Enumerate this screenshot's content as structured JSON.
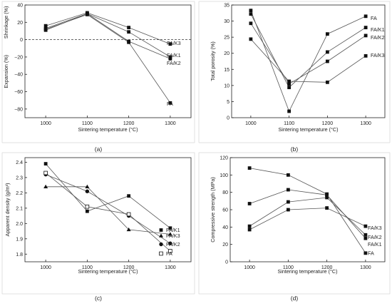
{
  "chart_data": [
    {
      "panel_label": "(a)",
      "type": "line",
      "x": [
        1000,
        1100,
        1200,
        1300
      ],
      "xlabel": "Sintering temperature (°C)",
      "ylabel_top": "Shrinkage (%)",
      "ylabel_bottom": "Expansion (%)",
      "xlim": [
        950,
        1350
      ],
      "ylim": [
        -90,
        40
      ],
      "xticks": [
        "1000",
        "1100",
        "1200",
        "1300"
      ],
      "yticks": [
        "40",
        "20",
        "0",
        "−20",
        "−40",
        "−60",
        "−80"
      ],
      "zero_line": "dashed",
      "series": [
        {
          "name": "FA/K3",
          "values": [
            16,
            31,
            14,
            -5
          ],
          "marker": "square"
        },
        {
          "name": "FA/K1",
          "values": [
            13,
            30,
            9,
            -20
          ],
          "marker": "square"
        },
        {
          "name": "FA/K2",
          "values": [
            11,
            30,
            -2,
            -22
          ],
          "marker": "square"
        },
        {
          "name": "FA",
          "values": [
            12,
            29,
            -3,
            -73
          ],
          "marker": "square"
        }
      ]
    },
    {
      "panel_label": "(b)",
      "type": "line",
      "x": [
        1000,
        1100,
        1200,
        1300
      ],
      "xlabel": "Sintering temperature (°C)",
      "ylabel": "Total porosity (%)",
      "xlim": [
        950,
        1350
      ],
      "ylim": [
        0,
        35
      ],
      "xticks": [
        "1000",
        "1100",
        "1200",
        "1300"
      ],
      "yticks": [
        "0",
        "5",
        "10",
        "15",
        "20",
        "25",
        "30",
        "35"
      ],
      "series": [
        {
          "name": "FA",
          "values": [
            33.3,
            2,
            26,
            31.5
          ],
          "marker": "square"
        },
        {
          "name": "FA/K1",
          "values": [
            32.2,
            9.4,
            20.4,
            28
          ],
          "marker": "square"
        },
        {
          "name": "FA/K2",
          "values": [
            29.3,
            10.5,
            17.5,
            25.5
          ],
          "marker": "square"
        },
        {
          "name": "FA/K3",
          "values": [
            24.4,
            11.3,
            11,
            19.2
          ],
          "marker": "square"
        }
      ]
    },
    {
      "panel_label": "(c)",
      "type": "line",
      "x": [
        1000,
        1100,
        1200,
        1300
      ],
      "xlabel": "Sintering temperature (°C)",
      "ylabel": "Apparent density (g/m³)",
      "xlim": [
        950,
        1350
      ],
      "ylim": [
        1.75,
        2.43
      ],
      "xticks": [
        "1000",
        "1100",
        "1200",
        "1300"
      ],
      "yticks": [
        "1.8",
        "1.9",
        "2.0",
        "2.1",
        "2.2",
        "2.3",
        "2.4"
      ],
      "series": [
        {
          "name": "FA/K1",
          "values": [
            2.39,
            2.08,
            2.18,
            1.97
          ],
          "marker": "filled-square"
        },
        {
          "name": "FA/K3",
          "values": [
            2.24,
            2.24,
            1.96,
            1.93
          ],
          "marker": "filled-triangle"
        },
        {
          "name": "FA/K2",
          "values": [
            2.32,
            2.21,
            2.05,
            1.87
          ],
          "marker": "filled-circle"
        },
        {
          "name": "FA",
          "values": [
            2.33,
            2.11,
            2.06,
            1.82
          ],
          "marker": "open-square"
        }
      ]
    },
    {
      "panel_label": "(d)",
      "type": "line",
      "x": [
        1000,
        1100,
        1200,
        1300
      ],
      "xlabel": "Sintering temperature (°C)",
      "ylabel": "Compressive strength (MPa)",
      "xlim": [
        950,
        1350
      ],
      "ylim": [
        0,
        120
      ],
      "xticks": [
        "1000",
        "1100",
        "1200",
        "1300"
      ],
      "yticks": [
        "0",
        "20",
        "40",
        "60",
        "80",
        "100",
        "120"
      ],
      "series": [
        {
          "name": "FA/K3",
          "values": [
            37,
            60,
            62,
            41
          ],
          "marker": "square"
        },
        {
          "name": "FA/K2",
          "values": [
            41,
            69,
            74,
            31
          ],
          "marker": "square"
        },
        {
          "name": "FA/K1",
          "values": [
            67,
            83,
            77,
            27
          ],
          "marker": "square"
        },
        {
          "name": "FA",
          "values": [
            108,
            100,
            78,
            10
          ],
          "marker": "square"
        }
      ]
    }
  ]
}
